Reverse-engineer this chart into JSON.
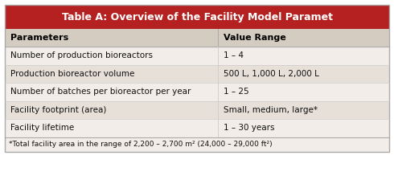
{
  "title": "Table A: Overview of the Facility Model Paramet",
  "title_bg": "#b52020",
  "title_color": "#ffffff",
  "header_bg": "#d4ccc0",
  "header_color": "#000000",
  "row_bg_light": "#f2ede8",
  "row_bg_dark": "#e6e0d8",
  "border_color": "#aaaaaa",
  "divider_color": "#cccccc",
  "col1_header": "Parameters",
  "col2_header": "Value Range",
  "rows": [
    [
      "Number of production bioreactors",
      "1 – 4"
    ],
    [
      "Production bioreactor volume",
      "500 L, 1,000 L, 2,000 L"
    ],
    [
      "Number of batches per bioreactor per year",
      "1 – 25"
    ],
    [
      "Facility footprint (area)",
      "Small, medium, large*"
    ],
    [
      "Facility lifetime",
      "1 – 30 years"
    ]
  ],
  "footnote": "*Total facility area in the range of 2,200 – 2,700 m² (24,000 – 29,000 ft²)",
  "col_split": 0.555,
  "title_fontsize": 9.0,
  "header_fontsize": 8.0,
  "row_fontsize": 7.5,
  "footnote_fontsize": 6.5,
  "fig_width": 4.9,
  "fig_height": 2.24,
  "dpi": 100
}
